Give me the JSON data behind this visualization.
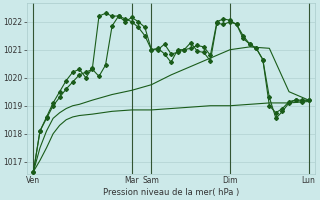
{
  "xlabel": "Pression niveau de la mer( hPa )",
  "bg_color": "#cce9e9",
  "grid_color": "#aacccc",
  "line_color": "#1a5c1a",
  "ylim": [
    1016.55,
    1022.65
  ],
  "xlim": [
    -4,
    172
  ],
  "yticks": [
    1017,
    1018,
    1019,
    1020,
    1021,
    1022
  ],
  "day_labels": [
    "Ven",
    "Mar",
    "Sam",
    "Dim",
    "Lun"
  ],
  "day_positions": [
    0,
    60,
    72,
    120,
    168
  ],
  "vline_positions": [
    0,
    60,
    72,
    120,
    168
  ],
  "s1_x": [
    0,
    4,
    8,
    12,
    16,
    20,
    24,
    28,
    36,
    48,
    60,
    72,
    84,
    96,
    108,
    120,
    132,
    144,
    156,
    168
  ],
  "s1_y": [
    1016.65,
    1017.05,
    1017.5,
    1018.0,
    1018.3,
    1018.5,
    1018.6,
    1018.65,
    1018.7,
    1018.8,
    1018.85,
    1018.85,
    1018.9,
    1018.95,
    1019.0,
    1019.0,
    1019.05,
    1019.1,
    1019.1,
    1019.15
  ],
  "s2_x": [
    0,
    4,
    8,
    12,
    16,
    20,
    24,
    28,
    36,
    48,
    60,
    72,
    84,
    96,
    108,
    120,
    132,
    144,
    156,
    168
  ],
  "s2_y": [
    1016.65,
    1017.5,
    1018.1,
    1018.55,
    1018.75,
    1018.9,
    1019.0,
    1019.05,
    1019.2,
    1019.4,
    1019.55,
    1019.75,
    1020.1,
    1020.4,
    1020.7,
    1021.0,
    1021.1,
    1021.05,
    1019.5,
    1019.2
  ],
  "s3_x": [
    0,
    4,
    8,
    12,
    16,
    20,
    24,
    28,
    32,
    36,
    40,
    44,
    48,
    52,
    56,
    60,
    64,
    68,
    72,
    76,
    80,
    84,
    88,
    92,
    96,
    100,
    104,
    108,
    112,
    116,
    120,
    124,
    128,
    132,
    136,
    140,
    144,
    148,
    152,
    156,
    160,
    164,
    168
  ],
  "s3_y": [
    1016.65,
    1018.1,
    1018.55,
    1019.0,
    1019.3,
    1019.6,
    1019.85,
    1020.1,
    1020.2,
    1020.3,
    1020.05,
    1020.45,
    1021.85,
    1022.2,
    1022.0,
    1022.15,
    1022.0,
    1021.8,
    1021.0,
    1021.05,
    1020.85,
    1020.55,
    1021.0,
    1021.0,
    1021.25,
    1020.95,
    1020.9,
    1020.6,
    1021.95,
    1021.9,
    1022.0,
    1021.9,
    1021.5,
    1021.2,
    1021.05,
    1020.65,
    1019.0,
    1018.75,
    1018.9,
    1019.15,
    1019.2,
    1019.2,
    1019.2
  ],
  "s4_x": [
    0,
    4,
    8,
    12,
    16,
    20,
    24,
    28,
    32,
    36,
    40,
    44,
    48,
    52,
    56,
    60,
    64,
    68,
    72,
    76,
    80,
    84,
    88,
    92,
    96,
    100,
    104,
    108,
    112,
    116,
    120,
    124,
    128,
    132,
    136,
    140,
    144,
    148,
    152,
    156,
    160,
    164,
    168
  ],
  "s4_y": [
    1016.65,
    1018.1,
    1018.6,
    1019.1,
    1019.5,
    1019.9,
    1020.2,
    1020.3,
    1020.0,
    1020.35,
    1022.2,
    1022.3,
    1022.2,
    1022.2,
    1022.1,
    1022.0,
    1021.8,
    1021.5,
    1021.0,
    1021.0,
    1021.2,
    1020.85,
    1020.9,
    1021.0,
    1021.05,
    1021.15,
    1021.1,
    1020.8,
    1022.0,
    1022.1,
    1022.05,
    1021.9,
    1021.4,
    1021.2,
    1021.05,
    1020.65,
    1019.3,
    1018.55,
    1018.8,
    1019.1,
    1019.2,
    1019.15,
    1019.2
  ]
}
